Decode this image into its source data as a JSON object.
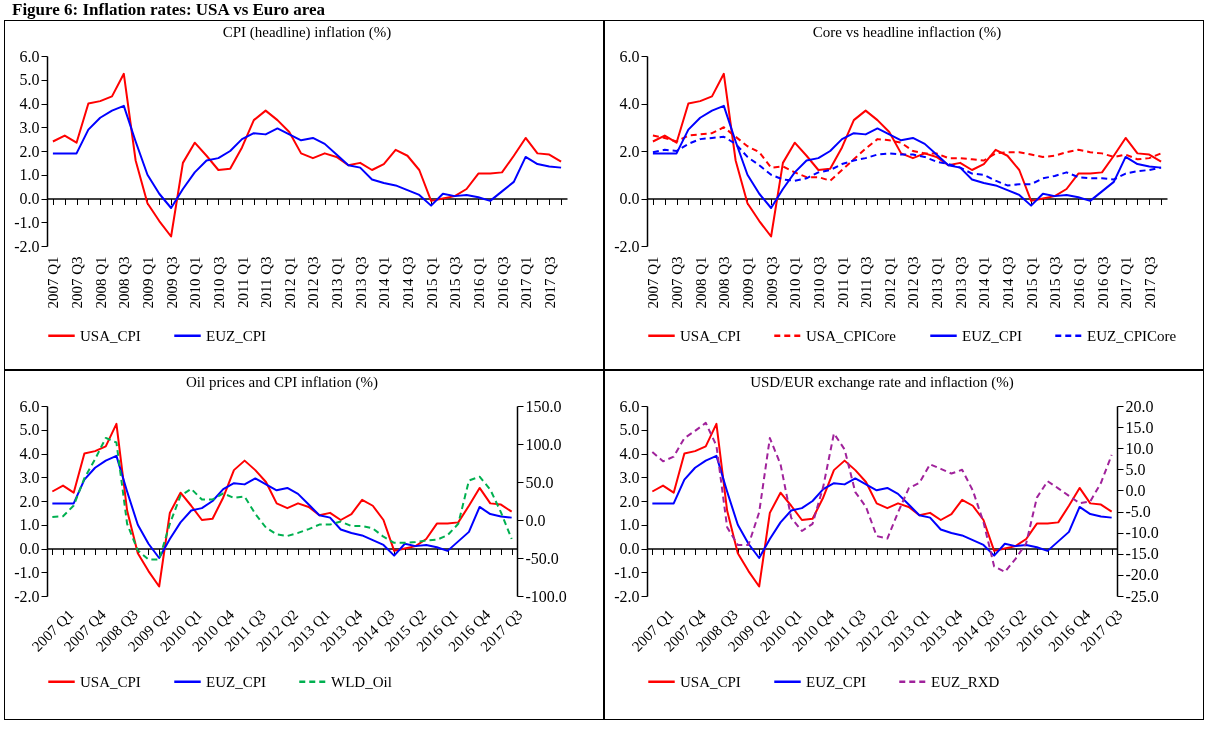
{
  "chart_data": [
    {
      "type": "line",
      "title": "CPI (headline) inflation (%)",
      "annotations": [
        "Figure 6: Inflation rates: USA vs Euro area"
      ],
      "categories": [
        "2007 Q1",
        null,
        "2007 Q3",
        null,
        "2008 Q1",
        null,
        "2008 Q3",
        null,
        "2009 Q1",
        null,
        "2009 Q3",
        null,
        "2010 Q1",
        null,
        "2010 Q3",
        null,
        "2011 Q1",
        null,
        "2011 Q3",
        null,
        "2012 Q1",
        null,
        "2012 Q3",
        null,
        "2013 Q1",
        null,
        "2013 Q3",
        null,
        "2014 Q1",
        null,
        "2014 Q3",
        null,
        "2015 Q1",
        null,
        "2015 Q3",
        null,
        "2016 Q1",
        null,
        "2016 Q3",
        null,
        "2017 Q1",
        null,
        "2017 Q3",
        null
      ],
      "series": [
        {
          "name": "USA_CPI",
          "color": "#ff0000",
          "values": [
            2.4,
            2.65,
            2.35,
            4.0,
            4.1,
            4.3,
            5.25,
            1.6,
            -0.2,
            -0.95,
            -1.6,
            1.5,
            2.35,
            1.8,
            1.2,
            1.25,
            2.15,
            3.3,
            3.7,
            3.3,
            2.8,
            1.9,
            1.7,
            1.9,
            1.75,
            1.4,
            1.5,
            1.2,
            1.45,
            2.05,
            1.8,
            1.2,
            -0.1,
            0.0,
            0.1,
            0.4,
            1.05,
            1.05,
            1.1,
            1.8,
            2.55,
            1.9,
            1.85,
            1.55
          ]
        },
        {
          "name": "EUZ_CPI",
          "color": "#0000ff",
          "values": [
            1.9,
            1.9,
            1.9,
            2.9,
            3.4,
            3.7,
            3.9,
            2.4,
            1.0,
            0.2,
            -0.4,
            0.4,
            1.1,
            1.6,
            1.7,
            2.0,
            2.5,
            2.75,
            2.7,
            2.95,
            2.7,
            2.45,
            2.55,
            2.3,
            1.85,
            1.4,
            1.3,
            0.8,
            0.65,
            0.55,
            0.35,
            0.15,
            -0.3,
            0.2,
            0.1,
            0.15,
            0.05,
            -0.1,
            0.3,
            0.7,
            1.75,
            1.45,
            1.35,
            1.3
          ]
        }
      ],
      "ylim": [
        -2,
        6
      ],
      "yticks": [
        {
          "value": -2,
          "label": "-2.0"
        },
        {
          "value": -1,
          "label": "-1.0"
        },
        {
          "value": 0,
          "label": "0.0"
        },
        {
          "value": 1,
          "label": "1.0"
        },
        {
          "value": 2,
          "label": "2.0"
        },
        {
          "value": 3,
          "label": "3.0"
        },
        {
          "value": 4,
          "label": "4.0"
        },
        {
          "value": 5,
          "label": "5.0"
        },
        {
          "value": 6,
          "label": "6.0"
        }
      ],
      "legend": "bottom",
      "line_style": "solid"
    },
    {
      "type": "line",
      "title": "Core vs headline inflaction (%)",
      "categories": [
        "2007 Q1",
        null,
        "2007 Q3",
        null,
        "2008 Q1",
        null,
        "2008 Q3",
        null,
        "2009 Q1",
        null,
        "2009 Q3",
        null,
        "2010 Q1",
        null,
        "2010 Q3",
        null,
        "2011 Q1",
        null,
        "2011 Q3",
        null,
        "2012 Q1",
        null,
        "2012 Q3",
        null,
        "2013 Q1",
        null,
        "2013 Q3",
        null,
        "2014 Q1",
        null,
        "2014 Q3",
        null,
        "2015 Q1",
        null,
        "2015 Q3",
        null,
        "2016 Q1",
        null,
        "2016 Q3",
        null,
        "2017 Q1",
        null,
        "2017 Q3",
        null
      ],
      "series": [
        {
          "name": "USA_CPI",
          "color": "#ff0000",
          "values": [
            2.4,
            2.65,
            2.35,
            4.0,
            4.1,
            4.3,
            5.25,
            1.6,
            -0.2,
            -0.95,
            -1.6,
            1.5,
            2.35,
            1.8,
            1.2,
            1.25,
            2.15,
            3.3,
            3.7,
            3.3,
            2.8,
            1.9,
            1.7,
            1.9,
            1.75,
            1.4,
            1.5,
            1.2,
            1.45,
            2.05,
            1.8,
            1.2,
            -0.1,
            0.0,
            0.1,
            0.4,
            1.05,
            1.05,
            1.1,
            1.8,
            2.55,
            1.9,
            1.85,
            1.55
          ]
        },
        {
          "name": "USA_CPICore",
          "color": "#ff0000",
          "line_style": "dashed",
          "values": [
            2.65,
            2.55,
            2.4,
            2.65,
            2.7,
            2.75,
            3.0,
            2.6,
            2.2,
            1.95,
            1.3,
            1.35,
            1.1,
            0.9,
            0.9,
            0.75,
            1.2,
            1.65,
            2.1,
            2.5,
            2.45,
            2.35,
            2.0,
            1.9,
            1.9,
            1.7,
            1.7,
            1.65,
            1.6,
            1.9,
            1.95,
            1.95,
            1.85,
            1.75,
            1.8,
            1.95,
            2.05,
            1.95,
            1.9,
            1.75,
            1.85,
            1.65,
            1.7,
            1.9
          ]
        },
        {
          "name": "EUZ_CPI",
          "color": "#0000ff",
          "values": [
            1.9,
            1.9,
            1.9,
            2.9,
            3.4,
            3.7,
            3.9,
            2.4,
            1.0,
            0.2,
            -0.4,
            0.4,
            1.1,
            1.6,
            1.7,
            2.0,
            2.5,
            2.75,
            2.7,
            2.95,
            2.7,
            2.45,
            2.55,
            2.3,
            1.85,
            1.4,
            1.3,
            0.8,
            0.65,
            0.55,
            0.35,
            0.15,
            -0.3,
            0.2,
            0.1,
            0.15,
            0.05,
            -0.1,
            0.3,
            0.7,
            1.75,
            1.45,
            1.35,
            1.3
          ]
        },
        {
          "name": "EUZ_CPICore",
          "color": "#0000ff",
          "line_style": "dashed",
          "values": [
            1.95,
            2.05,
            2.0,
            2.3,
            2.5,
            2.55,
            2.6,
            2.3,
            1.75,
            1.4,
            1.0,
            0.8,
            0.75,
            0.85,
            1.1,
            1.2,
            1.45,
            1.6,
            1.7,
            1.85,
            1.9,
            1.85,
            1.85,
            1.75,
            1.55,
            1.45,
            1.3,
            1.05,
            1.0,
            0.75,
            0.55,
            0.6,
            0.6,
            0.85,
            0.95,
            1.1,
            0.9,
            0.85,
            0.85,
            0.8,
            1.05,
            1.15,
            1.2,
            1.3
          ]
        }
      ],
      "ylim": [
        -2,
        6
      ],
      "yticks": [
        {
          "value": -2,
          "label": "-2.0"
        },
        {
          "value": 0,
          "label": "0.0"
        },
        {
          "value": 2,
          "label": "2.0"
        },
        {
          "value": 4,
          "label": "4.0"
        },
        {
          "value": 6,
          "label": "6.0"
        }
      ],
      "legend": "bottom",
      "line_style": "solid"
    },
    {
      "type": "line",
      "title": "Oil prices and CPI inflation (%)",
      "categories": [
        "2007 Q1",
        null,
        null,
        "2007 Q4",
        null,
        null,
        "2008 Q3",
        null,
        null,
        "2009 Q2",
        null,
        null,
        "2010 Q1",
        null,
        null,
        "2010 Q4",
        null,
        null,
        "2011 Q3",
        null,
        null,
        "2012 Q2",
        null,
        null,
        "2013 Q1",
        null,
        null,
        "2013 Q4",
        null,
        null,
        "2014 Q3",
        null,
        null,
        "2015 Q2",
        null,
        null,
        "2016 Q1",
        null,
        null,
        "2016 Q4",
        null,
        null,
        "2017 Q3",
        null
      ],
      "series": [
        {
          "name": "USA_CPI",
          "color": "#ff0000",
          "values": [
            2.4,
            2.65,
            2.35,
            4.0,
            4.1,
            4.3,
            5.25,
            1.6,
            -0.2,
            -0.95,
            -1.6,
            1.5,
            2.35,
            1.8,
            1.2,
            1.25,
            2.15,
            3.3,
            3.7,
            3.3,
            2.8,
            1.9,
            1.7,
            1.9,
            1.75,
            1.4,
            1.5,
            1.2,
            1.45,
            2.05,
            1.8,
            1.2,
            -0.1,
            0.0,
            0.1,
            0.4,
            1.05,
            1.05,
            1.1,
            1.8,
            2.55,
            1.9,
            1.85,
            1.55
          ]
        },
        {
          "name": "EUZ_CPI",
          "color": "#0000ff",
          "values": [
            1.9,
            1.9,
            1.9,
            2.9,
            3.4,
            3.7,
            3.9,
            2.4,
            1.0,
            0.2,
            -0.4,
            0.4,
            1.1,
            1.6,
            1.7,
            2.0,
            2.5,
            2.75,
            2.7,
            2.95,
            2.7,
            2.45,
            2.55,
            2.3,
            1.85,
            1.4,
            1.3,
            0.8,
            0.65,
            0.55,
            0.35,
            0.15,
            -0.3,
            0.2,
            0.1,
            0.15,
            0.05,
            -0.1,
            0.3,
            0.7,
            1.75,
            1.45,
            1.35,
            1.3
          ]
        },
        {
          "name": "WLD_Oil",
          "color": "#00b050",
          "line_style": "dashed",
          "axis": "y2",
          "values": [
            4,
            5,
            19,
            55,
            80,
            108,
            102,
            -5,
            -40,
            -52,
            -52,
            -5,
            32,
            41,
            27,
            27,
            35,
            29,
            31,
            8,
            -10,
            -19,
            -21,
            -17,
            -12,
            -6,
            -6,
            -2,
            -8,
            -8,
            -11,
            -22,
            -30,
            -30,
            -29,
            -27,
            -26,
            -20,
            -5,
            52,
            57,
            40,
            10,
            -25
          ]
        }
      ],
      "ylim": [
        -2,
        6
      ],
      "yticks": [
        {
          "value": -2,
          "label": "-2.0"
        },
        {
          "value": -1,
          "label": "-1.0"
        },
        {
          "value": 0,
          "label": "0.0"
        },
        {
          "value": 1,
          "label": "1.0"
        },
        {
          "value": 2,
          "label": "2.0"
        },
        {
          "value": 3,
          "label": "3.0"
        },
        {
          "value": 4,
          "label": "4.0"
        },
        {
          "value": 5,
          "label": "5.0"
        },
        {
          "value": 6,
          "label": "6.0"
        }
      ],
      "y2lim": [
        -100,
        150
      ],
      "y2ticks": [
        {
          "value": -100,
          "label": "-100.0"
        },
        {
          "value": -50,
          "label": "-50.0"
        },
        {
          "value": 0,
          "label": "0.0"
        },
        {
          "value": 50,
          "label": "50.0"
        },
        {
          "value": 100,
          "label": "100.0"
        },
        {
          "value": 150,
          "label": "150.0"
        }
      ],
      "legend": "bottom",
      "line_style": "solid"
    },
    {
      "type": "line",
      "title": "USD/EUR  exchange rate and inflaction (%)",
      "categories": [
        "2007 Q1",
        null,
        null,
        "2007 Q4",
        null,
        null,
        "2008 Q3",
        null,
        null,
        "2009 Q2",
        null,
        null,
        "2010 Q1",
        null,
        null,
        "2010 Q4",
        null,
        null,
        "2011 Q3",
        null,
        null,
        "2012 Q2",
        null,
        null,
        "2013 Q1",
        null,
        null,
        "2013 Q4",
        null,
        null,
        "2014 Q3",
        null,
        null,
        "2015 Q2",
        null,
        null,
        "2016 Q1",
        null,
        null,
        "2016 Q4",
        null,
        null,
        "2017 Q3",
        null
      ],
      "series": [
        {
          "name": "USA_CPI",
          "color": "#ff0000",
          "values": [
            2.4,
            2.65,
            2.35,
            4.0,
            4.1,
            4.3,
            5.25,
            1.6,
            -0.2,
            -0.95,
            -1.6,
            1.5,
            2.35,
            1.8,
            1.2,
            1.25,
            2.15,
            3.3,
            3.7,
            3.3,
            2.8,
            1.9,
            1.7,
            1.9,
            1.75,
            1.4,
            1.5,
            1.2,
            1.45,
            2.05,
            1.8,
            1.2,
            -0.1,
            0.0,
            0.1,
            0.4,
            1.05,
            1.05,
            1.1,
            1.8,
            2.55,
            1.9,
            1.85,
            1.55
          ]
        },
        {
          "name": "EUZ_CPI",
          "color": "#0000ff",
          "values": [
            1.9,
            1.9,
            1.9,
            2.9,
            3.4,
            3.7,
            3.9,
            2.4,
            1.0,
            0.2,
            -0.4,
            0.4,
            1.1,
            1.6,
            1.7,
            2.0,
            2.5,
            2.75,
            2.7,
            2.95,
            2.7,
            2.45,
            2.55,
            2.3,
            1.85,
            1.4,
            1.3,
            0.8,
            0.65,
            0.55,
            0.35,
            0.15,
            -0.3,
            0.2,
            0.1,
            0.15,
            0.05,
            -0.1,
            0.3,
            0.7,
            1.75,
            1.45,
            1.35,
            1.3
          ]
        },
        {
          "name": "EUZ_RXD",
          "color": "#a0229b",
          "line_style": "dashed",
          "axis": "y2",
          "values": [
            9.1,
            6.9,
            8.0,
            12.4,
            14.1,
            16.0,
            10.6,
            -8.7,
            -12.9,
            -12.9,
            -5.2,
            12.4,
            6.2,
            -6.5,
            -9.6,
            -7.9,
            0.9,
            13.5,
            9.7,
            -0.4,
            -3.9,
            -10.8,
            -11.4,
            -5.2,
            0.5,
            1.8,
            6.2,
            5.1,
            4.0,
            4.9,
            0.0,
            -7.5,
            -18.0,
            -19.3,
            -16.2,
            -12.5,
            -1.7,
            2.2,
            0.5,
            -1.3,
            -3.0,
            -2.6,
            1.8,
            8.4
          ]
        }
      ],
      "ylim": [
        -2,
        6
      ],
      "yticks": [
        {
          "value": -2,
          "label": "-2.0"
        },
        {
          "value": -1,
          "label": "-1.0"
        },
        {
          "value": 0,
          "label": "0.0"
        },
        {
          "value": 1,
          "label": "1.0"
        },
        {
          "value": 2,
          "label": "2.0"
        },
        {
          "value": 3,
          "label": "3.0"
        },
        {
          "value": 4,
          "label": "4.0"
        },
        {
          "value": 5,
          "label": "5.0"
        },
        {
          "value": 6,
          "label": "6.0"
        }
      ],
      "y2lim": [
        -25,
        20
      ],
      "y2ticks": [
        {
          "value": -25,
          "label": "-25.0"
        },
        {
          "value": -20,
          "label": "-20.0"
        },
        {
          "value": -15,
          "label": "-15.0"
        },
        {
          "value": -10,
          "label": "-10.0"
        },
        {
          "value": -5,
          "label": "-5.0"
        },
        {
          "value": 0,
          "label": "0.0"
        },
        {
          "value": 5,
          "label": "5.0"
        },
        {
          "value": 10,
          "label": "10.0"
        },
        {
          "value": 15,
          "label": "15.0"
        },
        {
          "value": 20,
          "label": "20.0"
        }
      ],
      "legend": "bottom",
      "line_style": "solid"
    }
  ]
}
